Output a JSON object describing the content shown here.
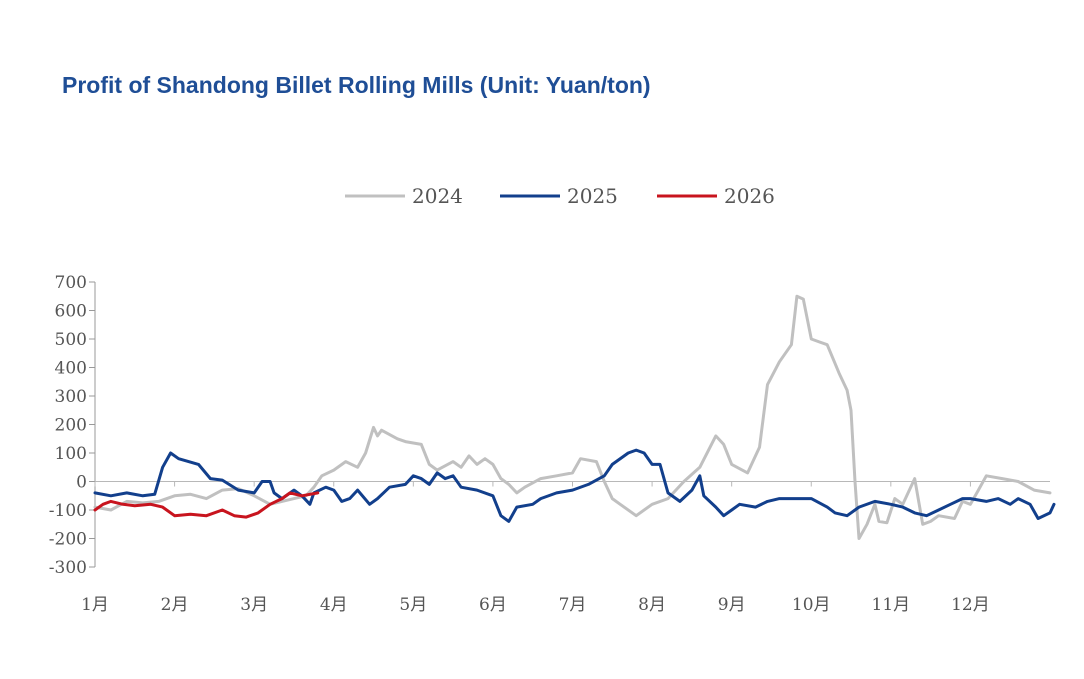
{
  "chart_data": {
    "type": "line",
    "title": "Profit of Shandong Billet Rolling Mills (Unit: Yuan/ton)",
    "xlabel": "",
    "ylabel": "",
    "ylim": [
      -300,
      700
    ],
    "yticks": [
      "700",
      "600",
      "500",
      "400",
      "300",
      "200",
      "100",
      "0",
      "-100",
      "-200",
      "-300"
    ],
    "ytick_values": [
      700,
      600,
      500,
      400,
      300,
      200,
      100,
      0,
      -100,
      -200,
      -300
    ],
    "xlim": [
      1,
      13
    ],
    "categories": [
      "1月",
      "2月",
      "3月",
      "4月",
      "5月",
      "6月",
      "7月",
      "8月",
      "9月",
      "10月",
      "11月",
      "12月"
    ],
    "legend_position": "top-center",
    "series": [
      {
        "name": "2024",
        "color": "#c0c0c0",
        "points": [
          [
            1.0,
            -90
          ],
          [
            1.2,
            -100
          ],
          [
            1.4,
            -70
          ],
          [
            1.6,
            -75
          ],
          [
            1.8,
            -70
          ],
          [
            2.0,
            -50
          ],
          [
            2.2,
            -45
          ],
          [
            2.4,
            -60
          ],
          [
            2.6,
            -30
          ],
          [
            2.8,
            -25
          ],
          [
            3.0,
            -50
          ],
          [
            3.2,
            -80
          ],
          [
            3.35,
            -70
          ],
          [
            3.5,
            -60
          ],
          [
            3.65,
            -50
          ],
          [
            3.75,
            -20
          ],
          [
            3.85,
            20
          ],
          [
            4.0,
            40
          ],
          [
            4.15,
            70
          ],
          [
            4.3,
            50
          ],
          [
            4.4,
            100
          ],
          [
            4.5,
            190
          ],
          [
            4.55,
            160
          ],
          [
            4.6,
            180
          ],
          [
            4.8,
            150
          ],
          [
            4.9,
            140
          ],
          [
            5.0,
            135
          ],
          [
            5.1,
            130
          ],
          [
            5.2,
            60
          ],
          [
            5.3,
            40
          ],
          [
            5.5,
            70
          ],
          [
            5.6,
            50
          ],
          [
            5.7,
            90
          ],
          [
            5.8,
            60
          ],
          [
            5.9,
            80
          ],
          [
            6.0,
            60
          ],
          [
            6.1,
            10
          ],
          [
            6.2,
            -10
          ],
          [
            6.3,
            -40
          ],
          [
            6.4,
            -20
          ],
          [
            6.6,
            10
          ],
          [
            6.8,
            20
          ],
          [
            7.0,
            30
          ],
          [
            7.1,
            80
          ],
          [
            7.3,
            70
          ],
          [
            7.4,
            0
          ],
          [
            7.5,
            -60
          ],
          [
            7.6,
            -80
          ],
          [
            7.8,
            -120
          ],
          [
            8.0,
            -80
          ],
          [
            8.2,
            -60
          ],
          [
            8.4,
            0
          ],
          [
            8.6,
            50
          ],
          [
            8.8,
            160
          ],
          [
            8.9,
            130
          ],
          [
            9.0,
            60
          ],
          [
            9.2,
            30
          ],
          [
            9.35,
            120
          ],
          [
            9.45,
            340
          ],
          [
            9.6,
            420
          ],
          [
            9.75,
            480
          ],
          [
            9.82,
            650
          ],
          [
            9.9,
            640
          ],
          [
            10.0,
            500
          ],
          [
            10.1,
            490
          ],
          [
            10.2,
            480
          ],
          [
            10.35,
            380
          ],
          [
            10.45,
            320
          ],
          [
            10.5,
            250
          ],
          [
            10.55,
            0
          ],
          [
            10.6,
            -200
          ],
          [
            10.7,
            -150
          ],
          [
            10.8,
            -80
          ],
          [
            10.85,
            -140
          ],
          [
            10.95,
            -145
          ],
          [
            11.05,
            -60
          ],
          [
            11.15,
            -80
          ],
          [
            11.3,
            10
          ],
          [
            11.4,
            -150
          ],
          [
            11.5,
            -140
          ],
          [
            11.6,
            -120
          ],
          [
            11.8,
            -130
          ],
          [
            11.9,
            -70
          ],
          [
            12.0,
            -80
          ],
          [
            12.1,
            -30
          ],
          [
            12.2,
            20
          ],
          [
            12.4,
            10
          ],
          [
            12.6,
            0
          ],
          [
            12.8,
            -30
          ],
          [
            13.0,
            -40
          ]
        ]
      },
      {
        "name": "2025",
        "color": "#123f8c",
        "points": [
          [
            1.0,
            -40
          ],
          [
            1.2,
            -50
          ],
          [
            1.4,
            -40
          ],
          [
            1.6,
            -50
          ],
          [
            1.75,
            -45
          ],
          [
            1.85,
            50
          ],
          [
            1.95,
            100
          ],
          [
            2.05,
            80
          ],
          [
            2.3,
            60
          ],
          [
            2.45,
            10
          ],
          [
            2.6,
            5
          ],
          [
            2.8,
            -30
          ],
          [
            3.0,
            -40
          ],
          [
            3.1,
            0
          ],
          [
            3.2,
            0
          ],
          [
            3.25,
            -40
          ],
          [
            3.35,
            -60
          ],
          [
            3.5,
            -30
          ],
          [
            3.6,
            -50
          ],
          [
            3.7,
            -80
          ],
          [
            3.75,
            -40
          ],
          [
            3.9,
            -20
          ],
          [
            4.0,
            -30
          ],
          [
            4.1,
            -70
          ],
          [
            4.2,
            -60
          ],
          [
            4.3,
            -30
          ],
          [
            4.45,
            -80
          ],
          [
            4.55,
            -60
          ],
          [
            4.7,
            -20
          ],
          [
            4.9,
            -10
          ],
          [
            5.0,
            20
          ],
          [
            5.1,
            10
          ],
          [
            5.2,
            -10
          ],
          [
            5.3,
            30
          ],
          [
            5.4,
            10
          ],
          [
            5.5,
            20
          ],
          [
            5.6,
            -20
          ],
          [
            5.8,
            -30
          ],
          [
            6.0,
            -50
          ],
          [
            6.1,
            -120
          ],
          [
            6.2,
            -140
          ],
          [
            6.3,
            -90
          ],
          [
            6.5,
            -80
          ],
          [
            6.6,
            -60
          ],
          [
            6.8,
            -40
          ],
          [
            7.0,
            -30
          ],
          [
            7.2,
            -10
          ],
          [
            7.4,
            20
          ],
          [
            7.5,
            60
          ],
          [
            7.7,
            100
          ],
          [
            7.8,
            110
          ],
          [
            7.9,
            100
          ],
          [
            8.0,
            60
          ],
          [
            8.1,
            60
          ],
          [
            8.2,
            -40
          ],
          [
            8.35,
            -70
          ],
          [
            8.5,
            -30
          ],
          [
            8.6,
            20
          ],
          [
            8.65,
            -50
          ],
          [
            8.8,
            -90
          ],
          [
            8.9,
            -120
          ],
          [
            9.0,
            -100
          ],
          [
            9.1,
            -80
          ],
          [
            9.3,
            -90
          ],
          [
            9.45,
            -70
          ],
          [
            9.6,
            -60
          ],
          [
            9.8,
            -60
          ],
          [
            10.0,
            -60
          ],
          [
            10.2,
            -90
          ],
          [
            10.3,
            -110
          ],
          [
            10.45,
            -120
          ],
          [
            10.6,
            -90
          ],
          [
            10.8,
            -70
          ],
          [
            11.0,
            -80
          ],
          [
            11.15,
            -90
          ],
          [
            11.3,
            -110
          ],
          [
            11.45,
            -120
          ],
          [
            11.6,
            -100
          ],
          [
            11.75,
            -80
          ],
          [
            11.9,
            -60
          ],
          [
            12.0,
            -60
          ],
          [
            12.2,
            -70
          ],
          [
            12.35,
            -60
          ],
          [
            12.5,
            -80
          ],
          [
            12.6,
            -60
          ],
          [
            12.75,
            -80
          ],
          [
            12.85,
            -130
          ],
          [
            13.0,
            -110
          ],
          [
            13.05,
            -80
          ]
        ]
      },
      {
        "name": "2026",
        "color": "#c8141e",
        "points": [
          [
            1.0,
            -100
          ],
          [
            1.1,
            -80
          ],
          [
            1.2,
            -70
          ],
          [
            1.35,
            -80
          ],
          [
            1.5,
            -85
          ],
          [
            1.7,
            -80
          ],
          [
            1.85,
            -90
          ],
          [
            2.0,
            -120
          ],
          [
            2.2,
            -115
          ],
          [
            2.4,
            -120
          ],
          [
            2.6,
            -100
          ],
          [
            2.75,
            -120
          ],
          [
            2.9,
            -125
          ],
          [
            3.05,
            -110
          ],
          [
            3.2,
            -80
          ],
          [
            3.35,
            -60
          ],
          [
            3.45,
            -40
          ],
          [
            3.6,
            -50
          ],
          [
            3.8,
            -40
          ]
        ]
      }
    ]
  },
  "legend": {
    "items": [
      {
        "label": "2024",
        "color": "#c0c0c0"
      },
      {
        "label": "2025",
        "color": "#123f8c"
      },
      {
        "label": "2026",
        "color": "#c8141e"
      }
    ]
  }
}
